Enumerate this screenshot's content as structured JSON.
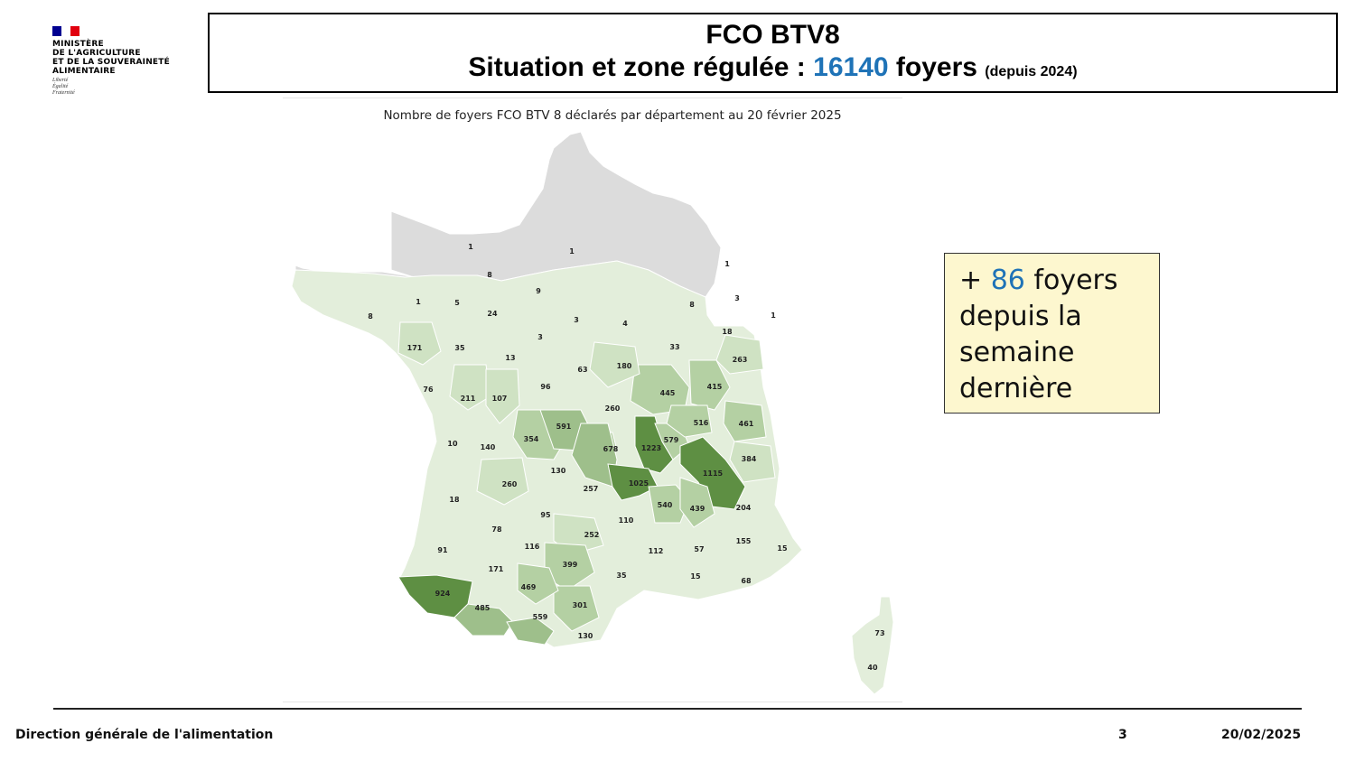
{
  "logo": {
    "flag_colors": [
      "#000091",
      "#ffffff",
      "#e1000f"
    ],
    "ministry_lines": [
      "MINISTÈRE",
      "DE L'AGRICULTURE",
      "ET DE LA SOUVERAINETÉ",
      "ALIMENTAIRE"
    ],
    "motto_lines": [
      "Liberté",
      "Égalité",
      "Fraternité"
    ]
  },
  "header": {
    "line1": "FCO BTV8",
    "line2_prefix": "Situation et zone régulée : ",
    "count": "16140",
    "line2_suffix": " foyers ",
    "since": "(depuis 2024)",
    "accent_color": "#1f73b7"
  },
  "map": {
    "title": "Nombre de foyers FCO BTV 8 déclarés par département au 20 février 2025",
    "colors": {
      "unaffected": "#dcdcdc",
      "level_1": "#e3eedb",
      "level_2": "#cfe2c3",
      "level_3": "#b4d0a3",
      "level_4": "#9ebf8b",
      "level_5": "#5e8f43"
    },
    "department_labels": [
      {
        "value": "1",
        "level": 1
      },
      {
        "value": "1",
        "level": 1
      },
      {
        "value": "8",
        "level": 1
      },
      {
        "value": "1",
        "level": 1
      },
      {
        "value": "9",
        "level": 1
      },
      {
        "value": "1",
        "level": 1
      },
      {
        "value": "5",
        "level": 1
      },
      {
        "value": "24",
        "level": 1
      },
      {
        "value": "8",
        "level": 1
      },
      {
        "value": "3",
        "level": 1
      },
      {
        "value": "4",
        "level": 1
      },
      {
        "value": "8",
        "level": 1
      },
      {
        "value": "3",
        "level": 1
      },
      {
        "value": "1",
        "level": 1
      },
      {
        "value": "18",
        "level": 1
      },
      {
        "value": "3",
        "level": 1
      },
      {
        "value": "171",
        "level": 2
      },
      {
        "value": "35",
        "level": 1
      },
      {
        "value": "13",
        "level": 1
      },
      {
        "value": "63",
        "level": 1
      },
      {
        "value": "180",
        "level": 2
      },
      {
        "value": "33",
        "level": 1
      },
      {
        "value": "263",
        "level": 2
      },
      {
        "value": "76",
        "level": 1
      },
      {
        "value": "211",
        "level": 2
      },
      {
        "value": "107",
        "level": 2
      },
      {
        "value": "96",
        "level": 1
      },
      {
        "value": "445",
        "level": 3
      },
      {
        "value": "415",
        "level": 3
      },
      {
        "value": "260",
        "level": 2
      },
      {
        "value": "516",
        "level": 3
      },
      {
        "value": "461",
        "level": 3
      },
      {
        "value": "591",
        "level": 4
      },
      {
        "value": "10",
        "level": 1
      },
      {
        "value": "140",
        "level": 2
      },
      {
        "value": "354",
        "level": 3
      },
      {
        "value": "678",
        "level": 4
      },
      {
        "value": "1223",
        "level": 5
      },
      {
        "value": "579",
        "level": 3
      },
      {
        "value": "384",
        "level": 3
      },
      {
        "value": "130",
        "level": 2
      },
      {
        "value": "1115",
        "level": 5
      },
      {
        "value": "1025",
        "level": 5
      },
      {
        "value": "260",
        "level": 2
      },
      {
        "value": "257",
        "level": 2
      },
      {
        "value": "18",
        "level": 1
      },
      {
        "value": "540",
        "level": 3
      },
      {
        "value": "439",
        "level": 3
      },
      {
        "value": "204",
        "level": 2
      },
      {
        "value": "95",
        "level": 1
      },
      {
        "value": "110",
        "level": 2
      },
      {
        "value": "78",
        "level": 1
      },
      {
        "value": "252",
        "level": 2
      },
      {
        "value": "155",
        "level": 2
      },
      {
        "value": "15",
        "level": 1
      },
      {
        "value": "91",
        "level": 1
      },
      {
        "value": "116",
        "level": 2
      },
      {
        "value": "112",
        "level": 2
      },
      {
        "value": "57",
        "level": 1
      },
      {
        "value": "171",
        "level": 2
      },
      {
        "value": "399",
        "level": 3
      },
      {
        "value": "35",
        "level": 1
      },
      {
        "value": "15",
        "level": 1
      },
      {
        "value": "68",
        "level": 1
      },
      {
        "value": "924",
        "level": 5
      },
      {
        "value": "469",
        "level": 3
      },
      {
        "value": "301",
        "level": 3
      },
      {
        "value": "485",
        "level": 3
      },
      {
        "value": "559",
        "level": 4
      },
      {
        "value": "130",
        "level": 2
      },
      {
        "value": "73",
        "level": 1
      },
      {
        "value": "40",
        "level": 1
      }
    ]
  },
  "callout": {
    "prefix": "+ ",
    "number": "86",
    "line1_suffix": " foyers",
    "line2": "depuis la",
    "line3": "semaine",
    "line4": "dernière"
  },
  "footer": {
    "org": "Direction générale de l'alimentation",
    "page": "3",
    "date": "20/02/2025"
  }
}
